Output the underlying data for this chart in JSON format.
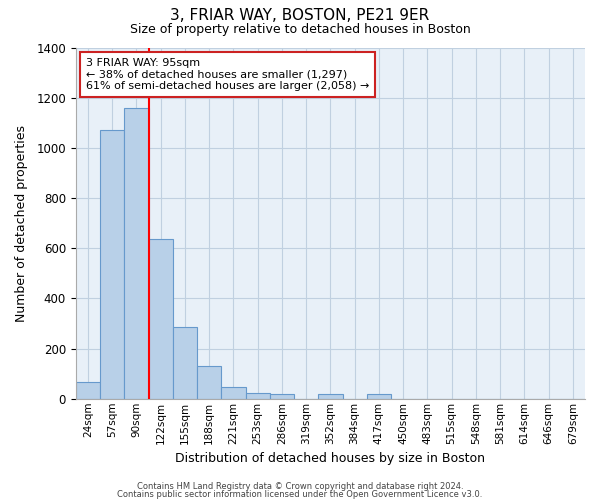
{
  "title": "3, FRIAR WAY, BOSTON, PE21 9ER",
  "subtitle": "Size of property relative to detached houses in Boston",
  "xlabel": "Distribution of detached houses by size in Boston",
  "ylabel": "Number of detached properties",
  "bar_labels": [
    "24sqm",
    "57sqm",
    "90sqm",
    "122sqm",
    "155sqm",
    "188sqm",
    "221sqm",
    "253sqm",
    "286sqm",
    "319sqm",
    "352sqm",
    "384sqm",
    "417sqm",
    "450sqm",
    "483sqm",
    "515sqm",
    "548sqm",
    "581sqm",
    "614sqm",
    "646sqm",
    "679sqm"
  ],
  "bar_values": [
    65,
    1070,
    1160,
    635,
    285,
    130,
    48,
    22,
    20,
    0,
    20,
    0,
    18,
    0,
    0,
    0,
    0,
    0,
    0,
    0,
    0
  ],
  "bar_color": "#b8d0e8",
  "bar_edge_color": "#6699cc",
  "red_line_index": 2.5,
  "annotation_title": "3 FRIAR WAY: 95sqm",
  "annotation_line1": "← 38% of detached houses are smaller (1,297)",
  "annotation_line2": "61% of semi-detached houses are larger (2,058) →",
  "ylim": [
    0,
    1400
  ],
  "yticks": [
    0,
    200,
    400,
    600,
    800,
    1000,
    1200,
    1400
  ],
  "ax_facecolor": "#e8f0f8",
  "background_color": "#ffffff",
  "grid_color": "#c0d0e0",
  "footer_line1": "Contains HM Land Registry data © Crown copyright and database right 2024.",
  "footer_line2": "Contains public sector information licensed under the Open Government Licence v3.0."
}
